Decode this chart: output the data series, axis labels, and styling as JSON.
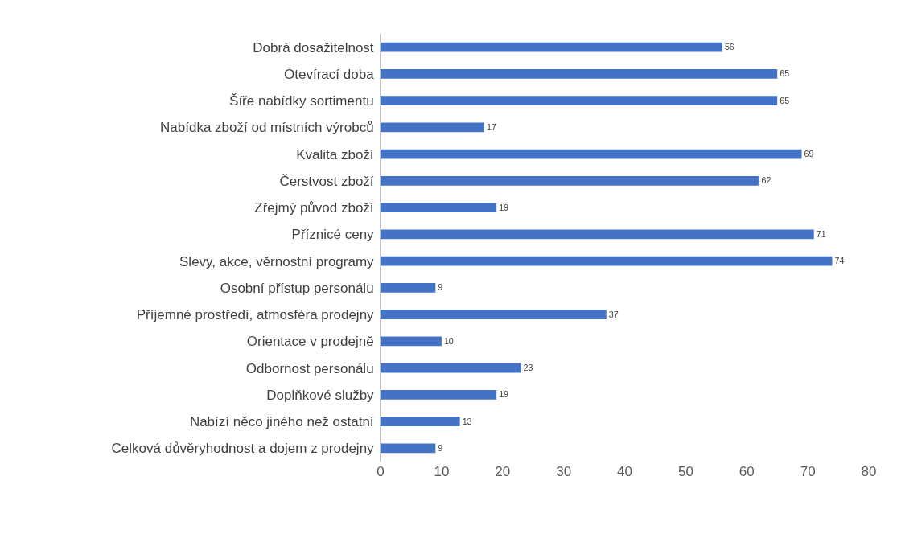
{
  "chart_data": {
    "type": "bar",
    "orientation": "horizontal",
    "categories": [
      "Dobrá dosažitelnost",
      "Otevírací doba",
      "Šíře nabídky sortimentu",
      "Nabídka zboží od místních výrobců",
      "Kvalita zboží",
      "Čerstvost zboží",
      "Zřejmý původ zboží",
      "Příznicé ceny",
      "Slevy, akce, věrnostní programy",
      "Osobní přístup personálu",
      "Příjemné prostředí, atmosféra prodejny",
      "Orientace v prodejně",
      "Odbornost personálu",
      "Doplňkové služby",
      "Nabízí něco jiného než ostatní",
      "Celková důvěryhodnost a dojem z prodejny"
    ],
    "values": [
      56,
      65,
      65,
      17,
      69,
      62,
      19,
      71,
      74,
      9,
      37,
      10,
      23,
      19,
      13,
      9
    ],
    "color": "#4472c4",
    "xlim": [
      0,
      80
    ],
    "xticks": [
      0,
      10,
      20,
      30,
      40,
      50,
      60,
      70,
      80
    ],
    "data_labels": true,
    "grid": false,
    "legend": false
  }
}
